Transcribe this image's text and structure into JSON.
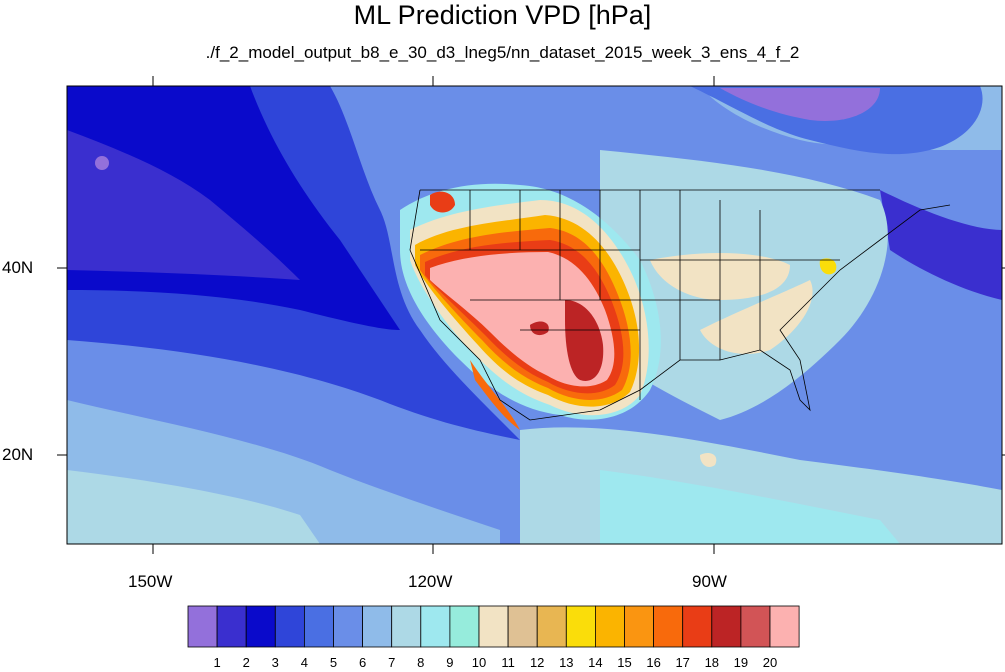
{
  "map": {
    "title": "ML Prediction VPD [hPa]",
    "subtitle": "./f_2_model_output_b8_e_30_d3_lneg5/nn_dataset_2015_week_3_ens_4_f_2",
    "lat_labels": [
      "40N",
      "20N"
    ],
    "lon_labels": [
      "150W",
      "120W",
      "90W"
    ],
    "colorbar": {
      "labels": [
        "1",
        "2",
        "3",
        "4",
        "5",
        "6",
        "7",
        "8",
        "9",
        "10",
        "11",
        "12",
        "13",
        "14",
        "15",
        "16",
        "17",
        "18",
        "19",
        "20"
      ],
      "colors": [
        "#9370db",
        "#3a2fcf",
        "#0a0acb",
        "#2f45d9",
        "#4a6fe3",
        "#6a8ee8",
        "#8fbbe9",
        "#add9e6",
        "#9ee8ef",
        "#96ecdc",
        "#f2e3c4",
        "#dfc194",
        "#e8b652",
        "#fadd0a",
        "#fbb400",
        "#fa9511",
        "#f86a0c",
        "#e93d16",
        "#bc2425",
        "#d25456",
        "#fcb1b0"
      ]
    }
  }
}
